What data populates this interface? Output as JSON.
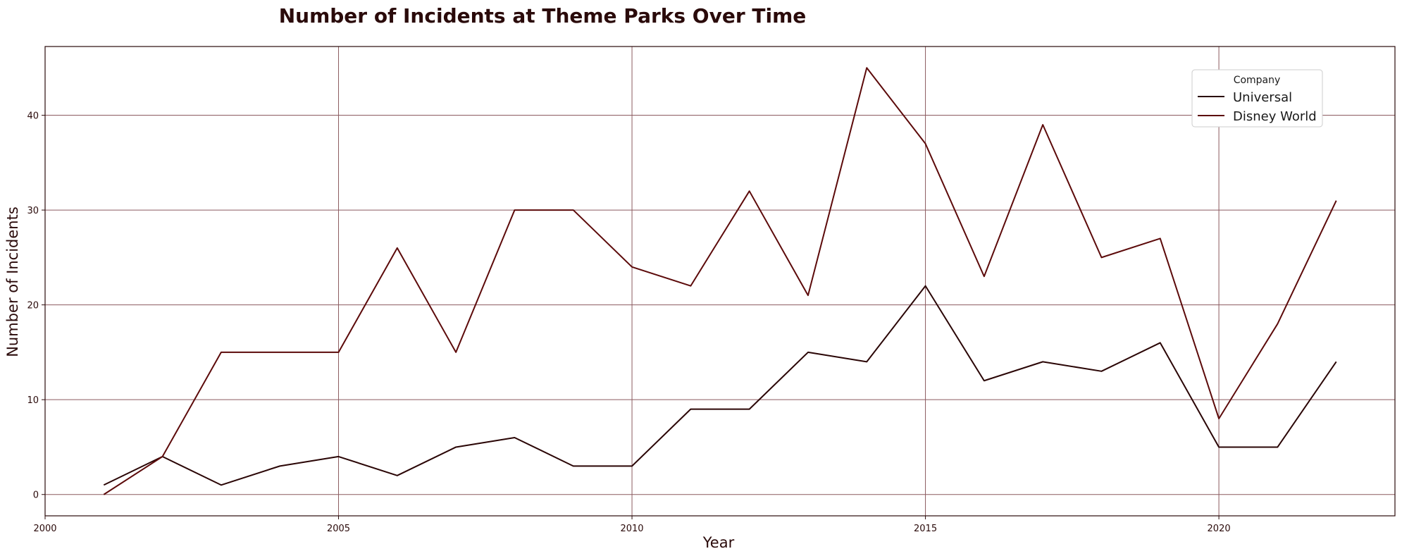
{
  "chart_data": {
    "type": "line",
    "title": "Number of Incidents at Theme Parks Over Time",
    "xlabel": "Year",
    "ylabel": "Number of Incidents",
    "xlim": [
      2000,
      2023
    ],
    "ylim": [
      -2.25,
      47.25
    ],
    "xticks": [
      2000,
      2005,
      2010,
      2015,
      2020
    ],
    "yticks": [
      0,
      10,
      20,
      30,
      40
    ],
    "grid": true,
    "legend": {
      "title": "Company",
      "placement": "top-right"
    },
    "x": [
      2001,
      2002,
      2003,
      2004,
      2005,
      2006,
      2007,
      2008,
      2009,
      2010,
      2011,
      2012,
      2013,
      2014,
      2015,
      2016,
      2017,
      2018,
      2019,
      2020,
      2021,
      2022
    ],
    "series": [
      {
        "name": "Universal",
        "color": "#2a0505",
        "values": [
          1,
          4,
          1,
          3,
          4,
          2,
          5,
          6,
          3,
          3,
          9,
          9,
          15,
          14,
          22,
          12,
          14,
          13,
          16,
          5,
          5,
          14
        ]
      },
      {
        "name": "Disney World",
        "color": "#5c0a0a",
        "values": [
          0,
          4,
          15,
          15,
          15,
          26,
          15,
          30,
          30,
          24,
          22,
          32,
          21,
          45,
          37,
          23,
          39,
          25,
          27,
          8,
          18,
          31
        ]
      }
    ],
    "colors": {
      "grid": "#8b5a5f",
      "axis": "#2a0a0a"
    }
  }
}
